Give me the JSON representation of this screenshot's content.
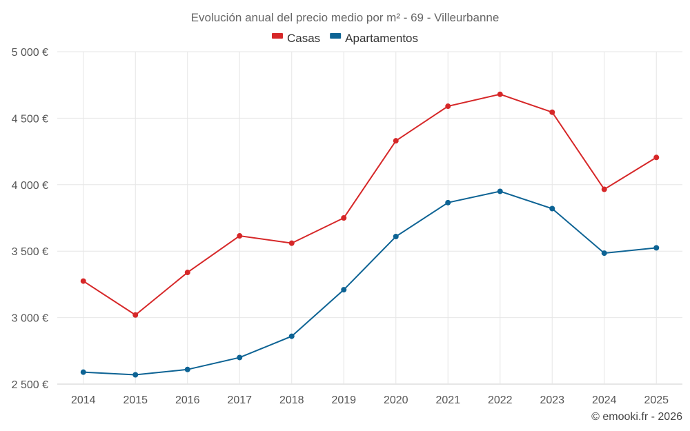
{
  "chart_data": {
    "type": "line",
    "title": "Evolución anual del precio medio por m² - 69 - Villeurbanne",
    "categories": [
      "2014",
      "2015",
      "2016",
      "2017",
      "2018",
      "2019",
      "2020",
      "2021",
      "2022",
      "2023",
      "2024",
      "2025"
    ],
    "series": [
      {
        "name": "Casas",
        "color": "#d62728",
        "values": [
          3275,
          3020,
          3340,
          3615,
          3560,
          3750,
          4330,
          4590,
          4680,
          4545,
          3965,
          4205
        ]
      },
      {
        "name": "Apartamentos",
        "color": "#0d6394",
        "values": [
          2590,
          2570,
          2610,
          2700,
          2860,
          3210,
          3610,
          3865,
          3950,
          3820,
          3485,
          3525
        ]
      }
    ],
    "ylim": [
      2500,
      5000
    ],
    "yticks": [
      2500,
      3000,
      3500,
      4000,
      4500,
      5000
    ],
    "ytick_labels": [
      "2 500 €",
      "3 000 €",
      "3 500 €",
      "4 000 €",
      "4 500 €",
      "5 000 €"
    ],
    "xlabel": "",
    "ylabel": "",
    "grid": true,
    "legend_position": "top-center"
  },
  "credit": "© emooki.fr - 2026"
}
